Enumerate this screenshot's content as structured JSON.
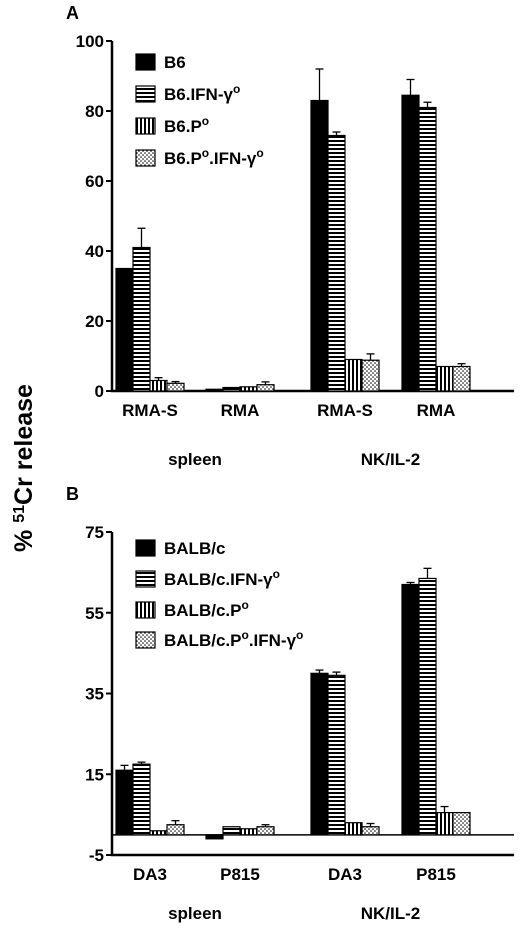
{
  "y_axis_label": {
    "prefix": "% ",
    "superscript": "51",
    "suffix": "Cr release"
  },
  "chart_data": [
    {
      "panel": "A",
      "type": "bar",
      "ylim": [
        0,
        100
      ],
      "yticks": [
        0,
        20,
        40,
        60,
        80,
        100
      ],
      "categories": [
        "RMA-S",
        "RMA",
        "RMA-S",
        "RMA"
      ],
      "groups": [
        {
          "label": "spleen",
          "span": [
            0,
            1
          ]
        },
        {
          "label": "NK/IL-2",
          "span": [
            2,
            3
          ]
        }
      ],
      "legend_position": "top-left",
      "series": [
        {
          "name": "B6",
          "base": "B6",
          "sup": "",
          "tail": "",
          "pattern": "solid",
          "values": [
            35,
            0.5,
            83,
            84.5
          ],
          "errors": [
            0,
            0,
            9,
            4.5
          ]
        },
        {
          "name": "B6.IFN-γo",
          "base": "B6.IFN-γ",
          "sup": "o",
          "tail": "",
          "pattern": "hstripe",
          "values": [
            41,
            1,
            73,
            81
          ],
          "errors": [
            5.5,
            0,
            1,
            1.5
          ]
        },
        {
          "name": "B6.Po",
          "base": "B6.P",
          "sup": "o",
          "tail": "",
          "pattern": "vstripe",
          "values": [
            3,
            1.2,
            9,
            7
          ],
          "errors": [
            0.8,
            0,
            0,
            0
          ]
        },
        {
          "name": "B6.Po.IFN-γo",
          "base": "B6.P",
          "sup": "o",
          "tail": ".IFN-γ",
          "sup2": "o",
          "pattern": "dots",
          "values": [
            2.2,
            1.8,
            8.8,
            7
          ],
          "errors": [
            0.5,
            0.8,
            1.8,
            0.8
          ]
        }
      ]
    },
    {
      "panel": "B",
      "type": "bar",
      "ylim": [
        -5,
        75
      ],
      "yticks": [
        -5,
        15,
        35,
        55,
        75
      ],
      "categories": [
        "DA3",
        "P815",
        "DA3",
        "P815"
      ],
      "groups": [
        {
          "label": "spleen",
          "span": [
            0,
            1
          ]
        },
        {
          "label": "NK/IL-2",
          "span": [
            2,
            3
          ]
        }
      ],
      "legend_position": "top-left",
      "series": [
        {
          "name": "BALB/c",
          "base": "BALB/c",
          "sup": "",
          "tail": "",
          "pattern": "solid",
          "values": [
            16,
            -1,
            40,
            62
          ],
          "errors": [
            1.2,
            0,
            0.8,
            0.5
          ]
        },
        {
          "name": "BALB/c.IFN-γo",
          "base": "BALB/c.IFN-γ",
          "sup": "o",
          "tail": "",
          "pattern": "hstripe",
          "values": [
            17.5,
            2,
            39.5,
            63.5
          ],
          "errors": [
            0.5,
            0,
            0.8,
            2.5
          ]
        },
        {
          "name": "BALB/c.Po",
          "base": "BALB/c.P",
          "sup": "o",
          "tail": "",
          "pattern": "vstripe",
          "values": [
            1,
            1.5,
            3,
            5.5
          ],
          "errors": [
            0,
            0,
            0,
            1.5
          ]
        },
        {
          "name": "BALB/c.Po.IFN-γo",
          "base": "BALB/c.P",
          "sup": "o",
          "tail": ".IFN-γ",
          "sup2": "o",
          "pattern": "dots",
          "values": [
            2.5,
            2,
            2,
            5.5
          ],
          "errors": [
            1,
            0.5,
            0.8,
            0
          ]
        }
      ]
    }
  ]
}
